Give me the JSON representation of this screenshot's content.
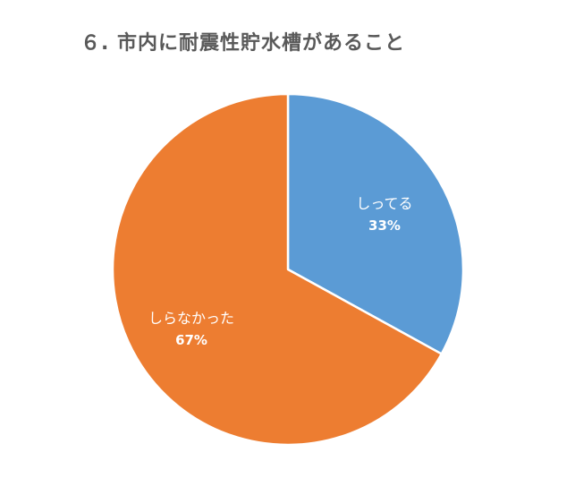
{
  "chart_data": {
    "type": "pie",
    "title": "６. 市内に耐震性貯水槽があること",
    "slices": [
      {
        "label": "しってる",
        "value": 33,
        "value_label": "33%",
        "color": "#5b9bd5"
      },
      {
        "label": "しらなかった",
        "value": 67,
        "value_label": "67%",
        "color": "#ed7d31"
      }
    ],
    "legend": "none",
    "data_labels": "inside"
  }
}
